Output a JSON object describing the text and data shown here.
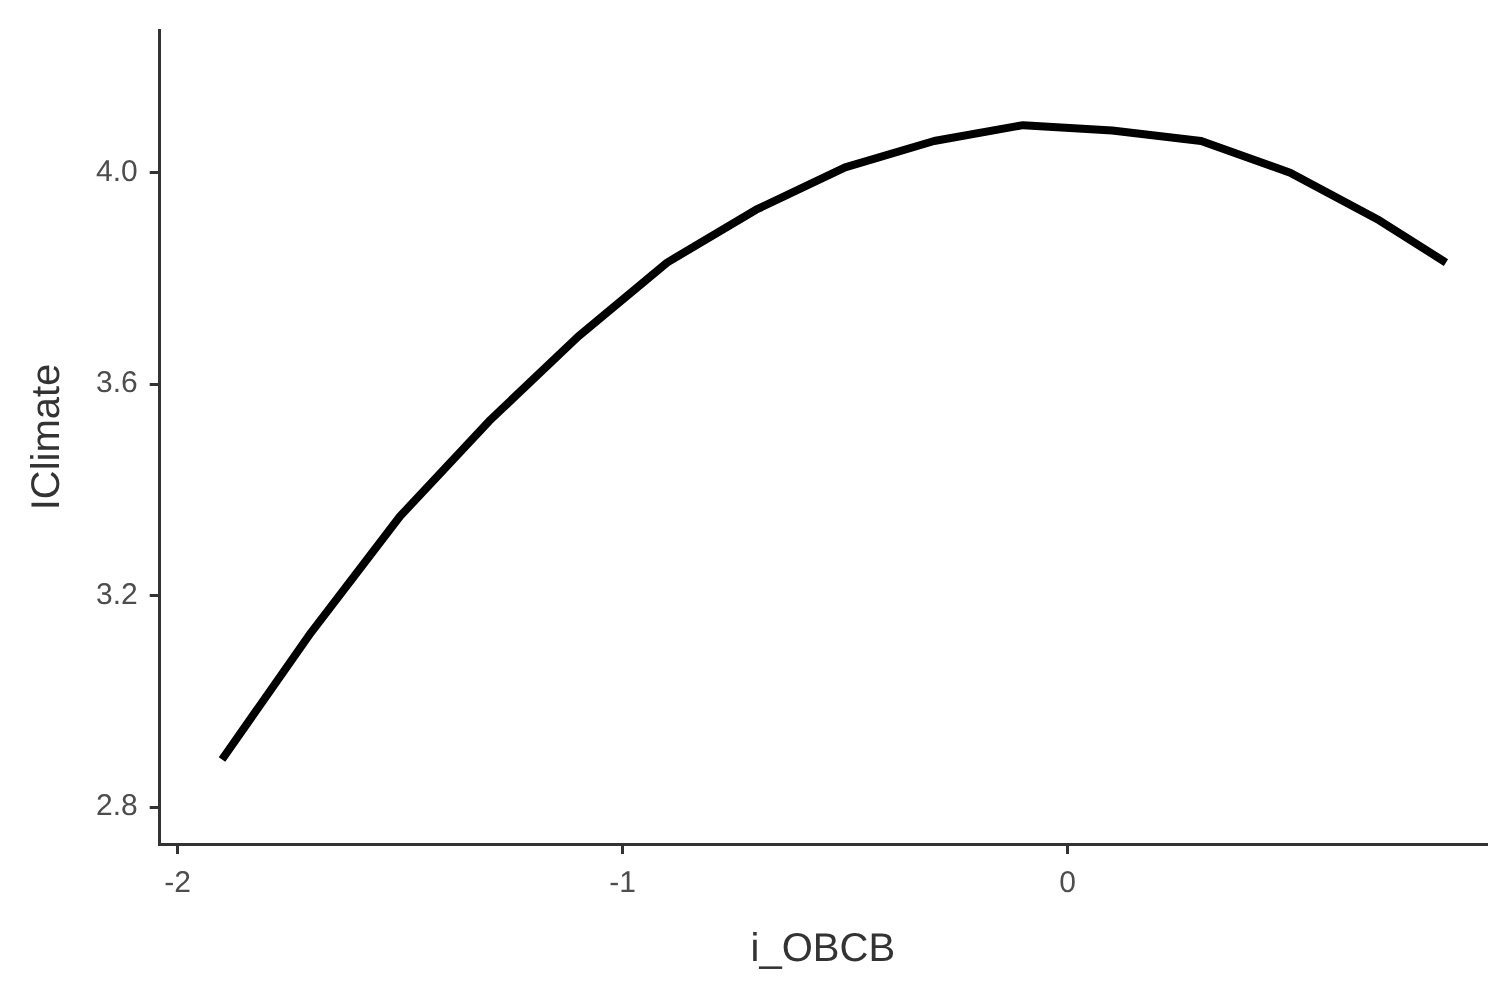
{
  "chart_data": {
    "type": "line",
    "xlabel": "i_OBCB",
    "ylabel": "IClimate",
    "x": [
      -1.9,
      -1.7,
      -1.5,
      -1.3,
      -1.1,
      -0.9,
      -0.7,
      -0.5,
      -0.3,
      -0.1,
      0.1,
      0.3,
      0.5,
      0.7,
      0.85
    ],
    "series": [
      {
        "color": "#000000",
        "values": [
          2.89,
          3.13,
          3.35,
          3.53,
          3.69,
          3.83,
          3.93,
          4.01,
          4.06,
          4.09,
          4.08,
          4.06,
          4.0,
          3.91,
          3.83
        ]
      }
    ],
    "xlim": [
      -2.04,
      0.94
    ],
    "xticks": [
      -2,
      -1,
      0
    ],
    "ylim": [
      2.73,
      4.27
    ],
    "yticks": [
      {
        "value": 2.8,
        "label": "2.8"
      },
      {
        "value": 3.2,
        "label": "3.2"
      },
      {
        "value": 3.6,
        "label": "3.6"
      },
      {
        "value": 4.0,
        "label": "4.0"
      }
    ]
  }
}
